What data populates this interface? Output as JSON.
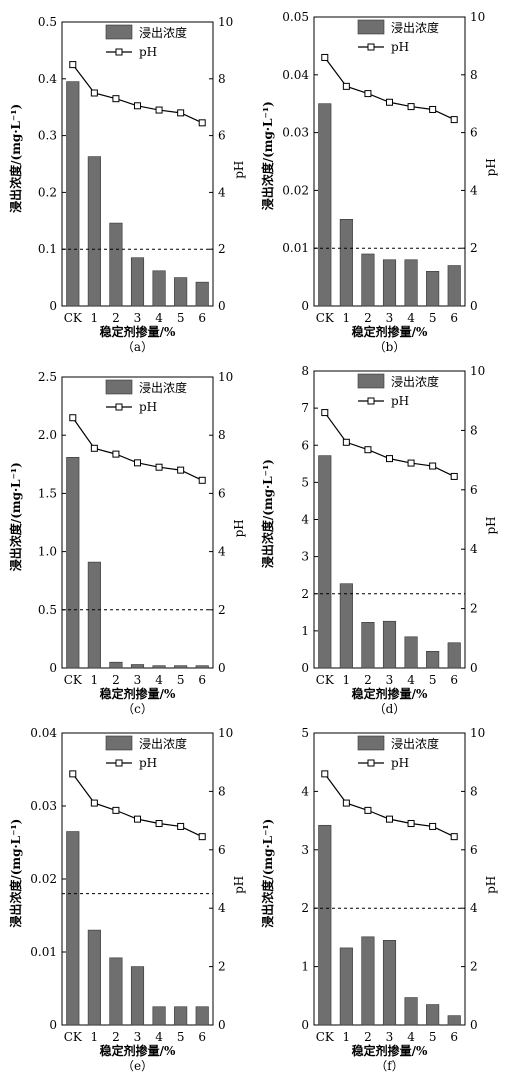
{
  "chart_data": [
    {
      "type": "bar",
      "panel_label": "（a）",
      "categories": [
        "CK",
        "1",
        "2",
        "3",
        "4",
        "5",
        "6"
      ],
      "xlabel": "稳定剂掺量/%",
      "ylabel": "浸出浓度/(mg·L⁻¹)",
      "y2label": "pH",
      "ylim": [
        0,
        0.5
      ],
      "yticks": [
        "0",
        "0.1",
        "0.2",
        "0.3",
        "0.4",
        "0.5"
      ],
      "y2lim": [
        0,
        10
      ],
      "y2ticks": [
        "0",
        "2",
        "4",
        "6",
        "8",
        "10"
      ],
      "threshold": 0.1,
      "series": [
        {
          "name": "浸出浓度",
          "type": "bar",
          "axis": "left",
          "values": [
            0.395,
            0.263,
            0.146,
            0.085,
            0.062,
            0.05,
            0.042
          ]
        },
        {
          "name": "pH",
          "type": "line",
          "axis": "right",
          "values": [
            8.5,
            7.5,
            7.3,
            7.05,
            6.9,
            6.8,
            6.45
          ]
        }
      ]
    },
    {
      "type": "bar",
      "panel_label": "（b）",
      "categories": [
        "CK",
        "1",
        "2",
        "3",
        "4",
        "5",
        "6"
      ],
      "xlabel": "稳定剂掺量/%",
      "ylabel": "浸出浓度/(mg·L⁻¹)",
      "y2label": "pH",
      "ylim": [
        0,
        0.05
      ],
      "yticks": [
        "0",
        "0.01",
        "0.02",
        "0.03",
        "0.04",
        "0.05"
      ],
      "y2lim": [
        0,
        10
      ],
      "y2ticks": [
        "0",
        "2",
        "4",
        "6",
        "8",
        "10"
      ],
      "threshold": 0.01,
      "series": [
        {
          "name": "浸出浓度",
          "type": "bar",
          "axis": "left",
          "values": [
            0.035,
            0.015,
            0.009,
            0.008,
            0.008,
            0.006,
            0.007
          ]
        },
        {
          "name": "pH",
          "type": "line",
          "axis": "right",
          "values": [
            8.6,
            7.6,
            7.35,
            7.05,
            6.9,
            6.8,
            6.45
          ]
        }
      ]
    },
    {
      "type": "bar",
      "panel_label": "（c）",
      "categories": [
        "CK",
        "1",
        "2",
        "3",
        "4",
        "5",
        "6"
      ],
      "xlabel": "稳定剂掺量/%",
      "ylabel": "浸出浓度/(mg·L⁻¹)",
      "y2label": "pH",
      "ylim": [
        0,
        2.5
      ],
      "yticks": [
        "0",
        "0.5",
        "1.0",
        "1.5",
        "2.0",
        "2.5"
      ],
      "y2lim": [
        0,
        10
      ],
      "y2ticks": [
        "0",
        "2",
        "4",
        "6",
        "8",
        "10"
      ],
      "threshold": 0.5,
      "series": [
        {
          "name": "浸出浓度",
          "type": "bar",
          "axis": "left",
          "values": [
            1.81,
            0.91,
            0.05,
            0.03,
            0.02,
            0.02,
            0.02
          ]
        },
        {
          "name": "pH",
          "type": "line",
          "axis": "right",
          "values": [
            8.6,
            7.55,
            7.35,
            7.05,
            6.9,
            6.8,
            6.45
          ]
        }
      ]
    },
    {
      "type": "bar",
      "panel_label": "（d）",
      "categories": [
        "CK",
        "1",
        "2",
        "3",
        "4",
        "5",
        "6"
      ],
      "xlabel": "稳定剂掺量/%",
      "ylabel": "浸出浓度/(mg·L⁻¹)",
      "y2label": "pH",
      "ylim": [
        0,
        8
      ],
      "yticks": [
        "0",
        "1",
        "2",
        "3",
        "4",
        "5",
        "6",
        "7",
        "8"
      ],
      "y2lim": [
        0,
        10
      ],
      "y2ticks": [
        "0",
        "2",
        "4",
        "6",
        "8",
        "10"
      ],
      "threshold": 2,
      "series": [
        {
          "name": "浸出浓度",
          "type": "bar",
          "axis": "left",
          "values": [
            5.72,
            2.27,
            1.23,
            1.26,
            0.84,
            0.45,
            0.68
          ]
        },
        {
          "name": "pH",
          "type": "line",
          "axis": "right",
          "values": [
            8.6,
            7.6,
            7.35,
            7.05,
            6.9,
            6.8,
            6.45
          ]
        }
      ]
    },
    {
      "type": "bar",
      "panel_label": "（e）",
      "categories": [
        "CK",
        "1",
        "2",
        "3",
        "4",
        "5",
        "6"
      ],
      "xlabel": "稳定剂掺量/%",
      "ylabel": "浸出浓度/(mg·L⁻¹)",
      "y2label": "pH",
      "ylim": [
        0,
        0.04
      ],
      "yticks": [
        "0",
        "0.01",
        "0.02",
        "0.03",
        "0.04"
      ],
      "y2lim": [
        0,
        10
      ],
      "y2ticks": [
        "0",
        "2",
        "4",
        "6",
        "8",
        "10"
      ],
      "threshold": 0.018,
      "series": [
        {
          "name": "浸出浓度",
          "type": "bar",
          "axis": "left",
          "values": [
            0.0265,
            0.013,
            0.0092,
            0.008,
            0.0025,
            0.0025,
            0.0025
          ]
        },
        {
          "name": "pH",
          "type": "line",
          "axis": "right",
          "values": [
            8.6,
            7.6,
            7.35,
            7.05,
            6.9,
            6.8,
            6.45
          ]
        }
      ]
    },
    {
      "type": "bar",
      "panel_label": "（f）",
      "categories": [
        "CK",
        "1",
        "2",
        "3",
        "4",
        "5",
        "6"
      ],
      "xlabel": "稳定剂掺量/%",
      "ylabel": "浸出浓度/(mg·L⁻¹)",
      "y2label": "pH",
      "ylim": [
        0,
        5
      ],
      "yticks": [
        "0",
        "1",
        "2",
        "3",
        "4",
        "5"
      ],
      "y2lim": [
        0,
        10
      ],
      "y2ticks": [
        "0",
        "2",
        "4",
        "6",
        "8",
        "10"
      ],
      "threshold": 2,
      "series": [
        {
          "name": "浸出浓度",
          "type": "bar",
          "axis": "left",
          "values": [
            3.42,
            1.32,
            1.51,
            1.45,
            0.47,
            0.35,
            0.16
          ]
        },
        {
          "name": "pH",
          "type": "line",
          "axis": "right",
          "values": [
            8.6,
            7.6,
            7.35,
            7.05,
            6.9,
            6.8,
            6.45
          ]
        }
      ]
    }
  ],
  "colors": {
    "bar": "#6f6f6f",
    "line": "#000000",
    "threshold": "#000000"
  }
}
